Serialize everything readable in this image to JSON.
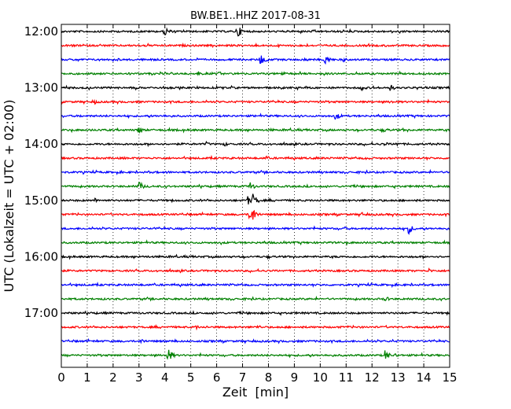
{
  "chart_data": {
    "type": "line",
    "title": "BW.BE1..HHZ 2017-08-31",
    "xlabel": "Zeit  [min]",
    "ylabel": "UTC (Lokalzeit = UTC + 02:00)",
    "xlim": [
      0,
      15
    ],
    "x_ticks": [
      "0",
      "1",
      "2",
      "3",
      "4",
      "5",
      "6",
      "7",
      "8",
      "9",
      "10",
      "11",
      "12",
      "13",
      "14",
      "15"
    ],
    "y_tick_labels": [
      "12:00",
      "13:00",
      "14:00",
      "15:00",
      "16:00",
      "17:00"
    ],
    "grid": "vertical dotted lines at each minute",
    "trace_interval_min": 15,
    "series_color_cycle": [
      "#000000",
      "#ff0000",
      "#0000ff",
      "#008000"
    ],
    "traces": [
      {
        "start": "12:00",
        "color": "#000000",
        "events": [
          [
            4.0,
            7
          ],
          [
            6.8,
            9
          ]
        ]
      },
      {
        "start": "12:15",
        "color": "#ff0000",
        "events": [
          [
            1.5,
            2
          ],
          [
            3.2,
            2
          ],
          [
            4.7,
            2
          ],
          [
            8.3,
            2
          ]
        ]
      },
      {
        "start": "12:30",
        "color": "#0000ff",
        "events": [
          [
            0.5,
            2
          ],
          [
            2.2,
            2
          ],
          [
            3.4,
            2
          ],
          [
            7.7,
            8
          ],
          [
            9.4,
            3
          ],
          [
            10.2,
            7
          ],
          [
            10.9,
            3
          ]
        ]
      },
      {
        "start": "12:45",
        "color": "#008000",
        "events": [
          [
            2.6,
            2
          ],
          [
            5.3,
            3
          ],
          [
            6.1,
            3
          ],
          [
            8.5,
            4
          ]
        ]
      },
      {
        "start": "13:00",
        "color": "#000000",
        "events": [
          [
            6.2,
            2
          ],
          [
            11.6,
            4
          ],
          [
            12.0,
            3
          ],
          [
            12.7,
            5
          ]
        ]
      },
      {
        "start": "13:15",
        "color": "#ff0000",
        "events": [
          [
            1.3,
            3
          ],
          [
            12.7,
            3
          ]
        ]
      },
      {
        "start": "13:30",
        "color": "#0000ff",
        "events": [
          [
            0.7,
            2
          ],
          [
            4.0,
            2
          ],
          [
            10.6,
            6
          ]
        ]
      },
      {
        "start": "13:45",
        "color": "#008000",
        "events": [
          [
            3.0,
            6
          ],
          [
            8.1,
            2
          ],
          [
            12.5,
            3
          ],
          [
            13.2,
            2
          ]
        ]
      },
      {
        "start": "14:00",
        "color": "#000000",
        "events": [
          [
            2.2,
            2
          ],
          [
            5.6,
            3
          ],
          [
            6.3,
            3
          ],
          [
            12.5,
            3
          ],
          [
            12.9,
            4
          ]
        ]
      },
      {
        "start": "14:15",
        "color": "#ff0000",
        "events": [
          [
            2.4,
            2
          ],
          [
            7.9,
            3
          ],
          [
            10.3,
            2
          ],
          [
            11.8,
            3
          ]
        ]
      },
      {
        "start": "14:30",
        "color": "#0000ff",
        "events": [
          [
            4.1,
            2
          ]
        ]
      },
      {
        "start": "14:45",
        "color": "#008000",
        "events": [
          [
            3.0,
            7
          ],
          [
            7.3,
            6
          ],
          [
            9.8,
            2
          ]
        ]
      },
      {
        "start": "15:00",
        "color": "#000000",
        "events": [
          [
            1.3,
            3
          ],
          [
            7.2,
            6
          ],
          [
            7.4,
            9
          ]
        ]
      },
      {
        "start": "15:15",
        "color": "#ff0000",
        "events": [
          [
            7.3,
            16
          ],
          [
            11.6,
            3
          ]
        ]
      },
      {
        "start": "15:30",
        "color": "#0000ff",
        "events": [
          [
            10.9,
            3
          ],
          [
            13.4,
            8
          ]
        ]
      },
      {
        "start": "15:45",
        "color": "#008000",
        "events": [
          [
            1.8,
            2
          ],
          [
            8.0,
            2
          ]
        ]
      },
      {
        "start": "16:00",
        "color": "#000000",
        "events": [
          [
            3.3,
            2
          ]
        ]
      },
      {
        "start": "16:15",
        "color": "#ff0000",
        "events": [
          [
            14.2,
            3
          ]
        ]
      },
      {
        "start": "16:30",
        "color": "#0000ff",
        "events": []
      },
      {
        "start": "16:45",
        "color": "#008000",
        "events": [
          [
            12.5,
            4
          ]
        ]
      },
      {
        "start": "17:00",
        "color": "#000000",
        "events": []
      },
      {
        "start": "17:15",
        "color": "#ff0000",
        "events": [
          [
            5.2,
            3
          ],
          [
            7.6,
            3
          ]
        ]
      },
      {
        "start": "17:30",
        "color": "#0000ff",
        "events": [
          [
            3.1,
            4
          ],
          [
            12.8,
            2
          ]
        ]
      },
      {
        "start": "17:45",
        "color": "#008000",
        "events": [
          [
            4.1,
            10
          ],
          [
            12.5,
            7
          ],
          [
            12.9,
            3
          ]
        ]
      }
    ]
  }
}
